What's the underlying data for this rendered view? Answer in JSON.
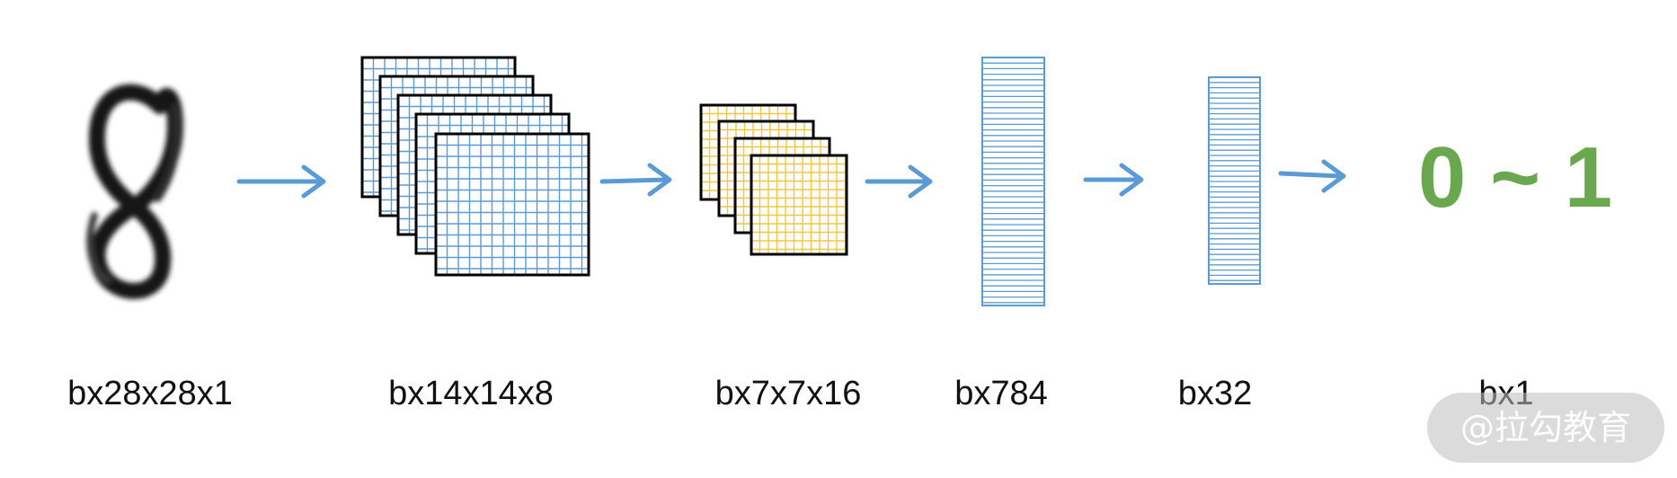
{
  "labels": {
    "input": "bx28x28x1",
    "conv1": "bx14x14x8",
    "conv2": "bx7x7x16",
    "flatten": "bx784",
    "dense": "bx32",
    "output": "bx1"
  },
  "output_range": "0 ~ 1",
  "watermark": "@拉勾教育",
  "colors": {
    "arrow": "#5b9bd5",
    "grid_blue": "#5b9bd5",
    "grid_yellow": "#f4c542",
    "output_green": "#6aa84f",
    "outline": "#000000"
  },
  "icons": {
    "input_image": "handwritten-digit-8",
    "arrows": "arrow-right-icon"
  }
}
